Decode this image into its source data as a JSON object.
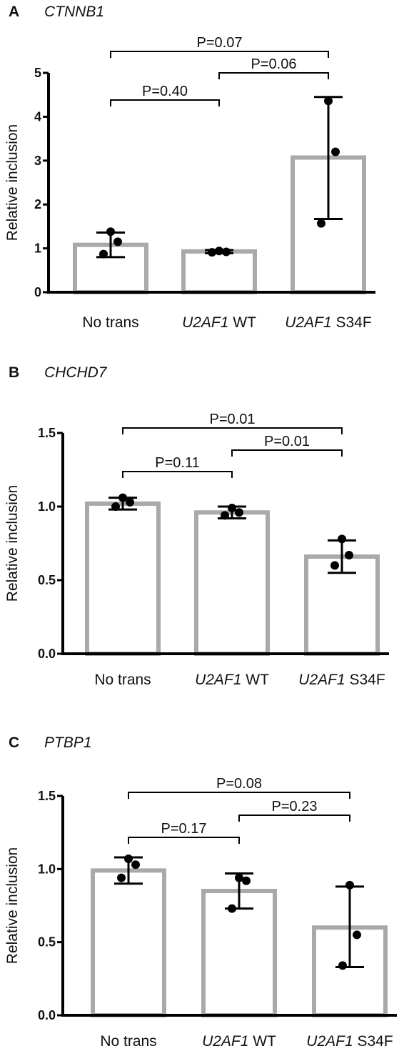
{
  "chart_data": [
    {
      "type": "bar",
      "panel": "A",
      "title": "CTNNB1",
      "ylabel": "Relative inclusion",
      "ylim": [
        0,
        5
      ],
      "yticks": [
        "0",
        "1",
        "2",
        "3",
        "4",
        "5"
      ],
      "categories": [
        {
          "italic": "",
          "plain": "No trans"
        },
        {
          "italic": "U2AF1",
          "plain": " WT"
        },
        {
          "italic": "U2AF1",
          "plain": " S34F"
        }
      ],
      "values": [
        1.08,
        0.93,
        3.07
      ],
      "errors": [
        [
          0.8,
          1.36
        ],
        [
          0.89,
          0.96
        ],
        [
          1.67,
          4.45
        ]
      ],
      "points": [
        [
          1.38,
          1.15,
          0.87
        ],
        [
          0.94,
          0.92,
          0.91
        ],
        [
          4.36,
          3.2,
          1.57
        ]
      ],
      "comparisons": [
        {
          "from": 0,
          "to": 1,
          "label": "P=0.40"
        },
        {
          "from": 1,
          "to": 2,
          "label": "P=0.06"
        },
        {
          "from": 0,
          "to": 2,
          "label": "P=0.07"
        }
      ]
    },
    {
      "type": "bar",
      "panel": "B",
      "title": "CHCHD7",
      "ylabel": "Relative inclusion",
      "ylim": [
        0,
        1.5
      ],
      "yticks": [
        "0.0",
        "0.5",
        "1.0",
        "1.5"
      ],
      "categories": [
        {
          "italic": "",
          "plain": "No trans"
        },
        {
          "italic": "U2AF1",
          "plain": " WT"
        },
        {
          "italic": "U2AF1",
          "plain": " S34F"
        }
      ],
      "values": [
        1.02,
        0.96,
        0.66
      ],
      "errors": [
        [
          0.98,
          1.06
        ],
        [
          0.92,
          1.0
        ],
        [
          0.55,
          0.77
        ]
      ],
      "points": [
        [
          1.06,
          1.03,
          1.0
        ],
        [
          0.99,
          0.96,
          0.94
        ],
        [
          0.78,
          0.67,
          0.6
        ]
      ],
      "comparisons": [
        {
          "from": 0,
          "to": 1,
          "label": "P=0.11"
        },
        {
          "from": 1,
          "to": 2,
          "label": "P=0.01"
        },
        {
          "from": 0,
          "to": 2,
          "label": "P=0.01"
        }
      ]
    },
    {
      "type": "bar",
      "panel": "C",
      "title": "PTBP1",
      "ylabel": "Relative inclusion",
      "ylim": [
        0,
        1.5
      ],
      "yticks": [
        "0.0",
        "0.5",
        "1.0",
        "1.5"
      ],
      "categories": [
        {
          "italic": "",
          "plain": "No trans"
        },
        {
          "italic": "U2AF1",
          "plain": " WT"
        },
        {
          "italic": "U2AF1",
          "plain": " S34F"
        }
      ],
      "values": [
        0.99,
        0.85,
        0.6
      ],
      "errors": [
        [
          0.9,
          1.08
        ],
        [
          0.73,
          0.97
        ],
        [
          0.33,
          0.88
        ]
      ],
      "points": [
        [
          1.07,
          1.03,
          0.94
        ],
        [
          0.94,
          0.92,
          0.73
        ],
        [
          0.89,
          0.55,
          0.34
        ]
      ],
      "comparisons": [
        {
          "from": 0,
          "to": 1,
          "label": "P=0.17"
        },
        {
          "from": 1,
          "to": 2,
          "label": "P=0.23"
        },
        {
          "from": 0,
          "to": 2,
          "label": "P=0.08"
        }
      ]
    }
  ],
  "colors": {
    "bar_outline": "#a9a9a9",
    "bar_fill": "#ffffff",
    "axis": "#000000",
    "points": "#000000",
    "error_bars": "#000000"
  }
}
